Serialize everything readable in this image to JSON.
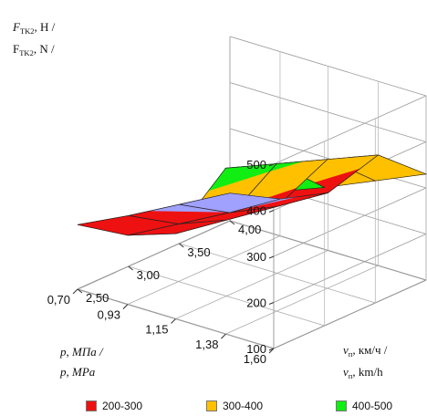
{
  "chart_data": {
    "type": "surface3d",
    "z_axis": {
      "label_line1": "F",
      "label_line1_sub": "TK2",
      "label_line1_rest": ", Н /",
      "label_line2": "F",
      "label_line2_sub": "TK2",
      "label_line2_rest": ", N /",
      "ticks": [
        "100",
        "200",
        "300",
        "400",
        "500"
      ],
      "range": [
        100,
        500
      ]
    },
    "p_axis": {
      "label_line1": "p, МПа /",
      "label_line2": "p, MPa",
      "ticks": [
        "1,60",
        "1,38",
        "1,15",
        "0,93",
        "0,70"
      ],
      "range": [
        0.7,
        1.6
      ]
    },
    "v_axis": {
      "label_line1": "v",
      "label_line1_sub": "п",
      "label_line1_rest": ", км/ч /",
      "label_line2": "v",
      "label_line2_sub": "п",
      "label_line2_rest": ", km/h",
      "ticks": [
        "2,50",
        "3,00",
        "3,50",
        "4,00"
      ],
      "range": [
        2.5,
        4.0
      ]
    },
    "p_values": [
      1.6,
      1.38,
      1.15,
      0.93,
      0.7
    ],
    "v_values": [
      2.5,
      3.0,
      3.5,
      4.0
    ],
    "values": [
      [
        440,
        400,
        365,
        330
      ],
      [
        460,
        420,
        380,
        340
      ],
      [
        285,
        265,
        245,
        225
      ],
      [
        250,
        225,
        200,
        180
      ],
      [
        240,
        210,
        185,
        160
      ]
    ],
    "legend": [
      {
        "label": "200-300",
        "color": "#ee1111"
      },
      {
        "label": "300-400",
        "color": "#ffc000"
      },
      {
        "label": "400-500",
        "color": "#11ee11"
      }
    ],
    "band_100_200_color": "#a0a0ff"
  }
}
